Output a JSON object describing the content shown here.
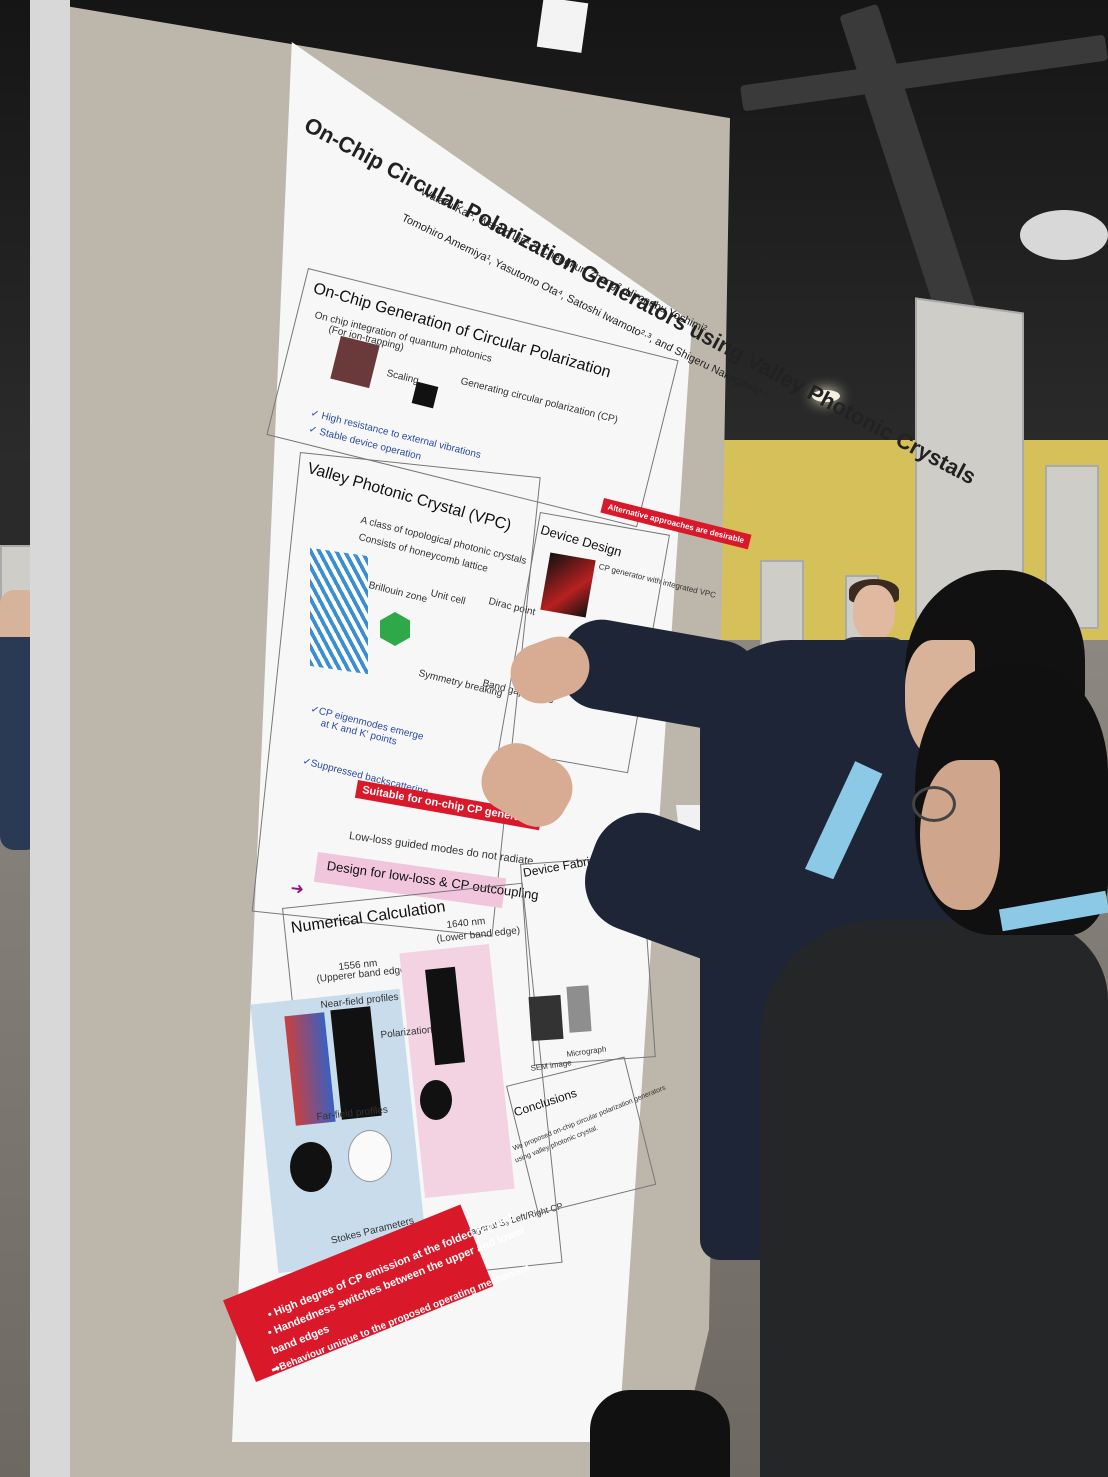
{
  "poster": {
    "title": "On-Chip Circular Polarization Generators using Valley Photonic Crystals",
    "authors_line1": "Wataru Kai¹, Wenbo Lin¹·², Chengkun Zhang², Hironobu Yoshimi²",
    "authors_line2": "Tomohiro Amemiya¹, Yasutomo Ota⁴, Satoshi Iwamoto²·³, and Shigeru Nakagawa¹·²",
    "section1": {
      "heading": "On-Chip Generation of Circular Polarization",
      "bullet1": "On chip integration of quantum photonics",
      "bullet1b": "(For ion-trapping)",
      "scaling": "Scaling",
      "right_caption": "Generating circular polarization (CP)",
      "check1": "✓ High resistance to external vibrations",
      "check2": "✓ Stable device operation",
      "alt_banner": "Alternative approaches are desirable"
    },
    "section2": {
      "heading": "Valley Photonic Crystal (VPC)",
      "bullet1": "A class of topological photonic crystals",
      "bullet2": "Consists of honeycomb lattice",
      "brillouin": "Brillouin zone",
      "unit_cell": "Unit cell",
      "dirac": "Dirac point",
      "symmetry": "Symmetry breaking",
      "bandgap": "Band gap opens",
      "check1": "✓CP eigenmodes emerge",
      "check1b": "at K and K' points",
      "check2": "✓Suppressed backscattering",
      "red_banner": "Suitable for on-chip CP generator",
      "lowloss": "Low-loss guided modes do not radiate",
      "pink_box": "Design for low-loss & CP outcoupling"
    },
    "section3": {
      "heading": "Device Design",
      "caption": "CP generator with integrated VPC"
    },
    "section4": {
      "heading": "Numerical Calculation",
      "upper": "1556 nm",
      "upper_b": "(Upperer band edge)",
      "lower": "1640 nm",
      "lower_b": "(Lower band edge)",
      "nearfield": "Near-field profiles",
      "polarization": "Polarization",
      "farfield": "Far-field profiles",
      "stokes": "Stokes Parameters",
      "stokes_line": "S₀ Power  S₁ Horizontal/Vertical  S₂ Diagonal/Antidiagonal  S₃ Left/Right CP",
      "banner1": "• High degree of CP emission at the folded K-point",
      "banner2": "• Handedness switches between the upper and lower",
      "banner3": "  band edges",
      "banner4": "➡Behaviour unique to the proposed operating mechanism"
    },
    "section5": {
      "heading": "Device Fabrication",
      "sem": "SEM image",
      "micro": "Micrograph"
    },
    "section6": {
      "heading": "Conclusions",
      "line1": "We proposed on-chip circular polarization generators",
      "line2": "using valley photonic crystal."
    }
  },
  "colors": {
    "red": "#d9182a",
    "pink": "#f1c6dc",
    "blue_text": "#2c4aa0",
    "wall": "#d6c05a"
  }
}
